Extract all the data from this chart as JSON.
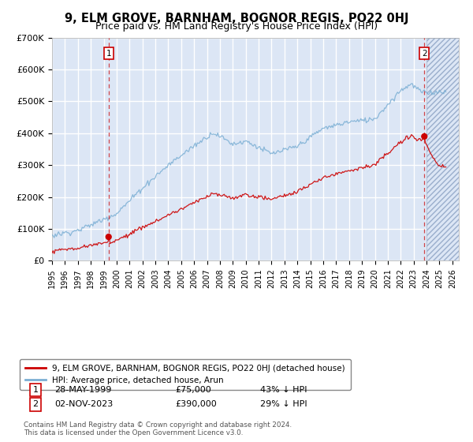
{
  "title": "9, ELM GROVE, BARNHAM, BOGNOR REGIS, PO22 0HJ",
  "subtitle": "Price paid vs. HM Land Registry's House Price Index (HPI)",
  "ylim": [
    0,
    700000
  ],
  "yticks": [
    0,
    100000,
    200000,
    300000,
    400000,
    500000,
    600000,
    700000
  ],
  "ytick_labels": [
    "£0",
    "£100K",
    "£200K",
    "£300K",
    "£400K",
    "£500K",
    "£600K",
    "£700K"
  ],
  "transaction1_year": 1999.38,
  "transaction1_price": 75000,
  "transaction1_label": "1",
  "transaction1_date": "28-MAY-1999",
  "transaction1_pct": "43% ↓ HPI",
  "transaction2_year": 2023.83,
  "transaction2_price": 390000,
  "transaction2_label": "2",
  "transaction2_date": "02-NOV-2023",
  "transaction2_pct": "29% ↓ HPI",
  "plot_bg_color": "#dce6f5",
  "red_line_color": "#cc0000",
  "blue_line_color": "#7bafd4",
  "grid_color": "#ffffff",
  "legend1_label": "9, ELM GROVE, BARNHAM, BOGNOR REGIS, PO22 0HJ (detached house)",
  "legend2_label": "HPI: Average price, detached house, Arun",
  "footer": "Contains HM Land Registry data © Crown copyright and database right 2024.\nThis data is licensed under the Open Government Licence v3.0.",
  "title_fontsize": 10.5,
  "subtitle_fontsize": 9
}
